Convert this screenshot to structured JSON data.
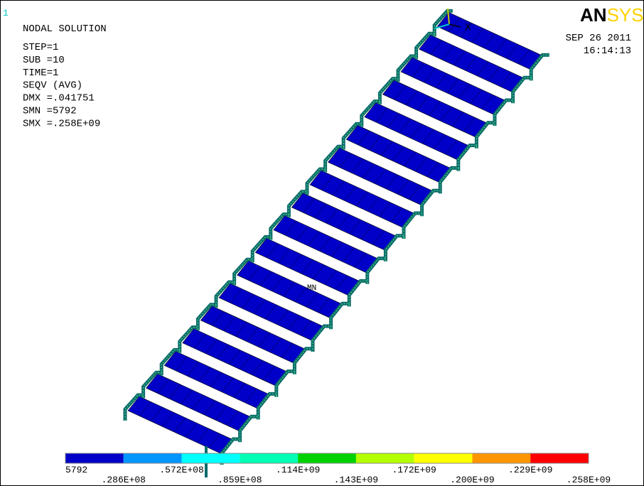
{
  "window_number": "1",
  "header": {
    "lines": [
      "NODAL SOLUTION",
      "STEP=1",
      "SUB =10",
      "TIME=1",
      "SEQV     (AVG)",
      "DMX =.041751",
      "SMN =5792",
      "SMX =.258E+09"
    ]
  },
  "logo": {
    "dark": "AN",
    "light": "SYS"
  },
  "date": "SEP 26 2011",
  "time": "16:14:13",
  "triad_label": "X",
  "min_marker": "MN",
  "legend": {
    "colors": [
      "#0000c8",
      "#0096ff",
      "#00ffff",
      "#00ffb4",
      "#00d200",
      "#b4ff00",
      "#ffff00",
      "#ff9600",
      "#ff0000"
    ],
    "labels": [
      "5792",
      ".286E+08",
      ".572E+08",
      ".859E+08",
      ".114E+09",
      ".143E+09",
      ".172E+09",
      ".200E+09",
      ".229E+09",
      ".258E+09"
    ]
  }
}
